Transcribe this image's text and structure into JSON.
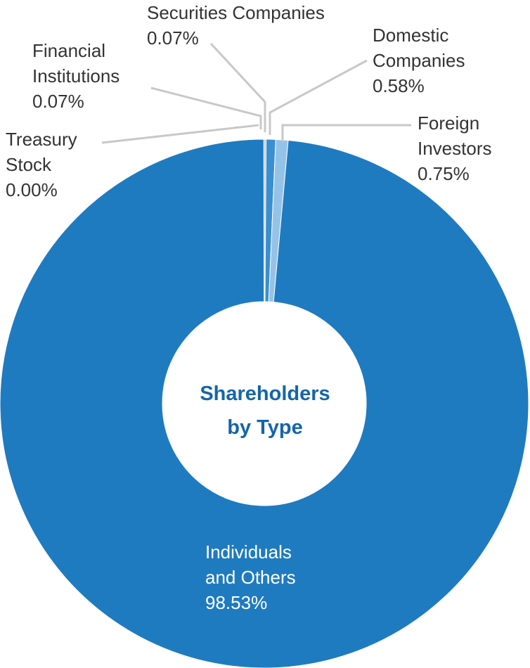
{
  "chart_data": {
    "type": "pie",
    "variant": "donut",
    "title": "Shareholders by Type",
    "title_lines": [
      "Shareholders",
      "by Type"
    ],
    "unit": "%",
    "slices": [
      {
        "name": "Treasury Stock",
        "lines": [
          "Treasury",
          "Stock"
        ],
        "value": 0.0,
        "label": "0.00%",
        "color": "#c8c8c8"
      },
      {
        "name": "Financial Institutions",
        "lines": [
          "Financial",
          "Institutions"
        ],
        "value": 0.07,
        "label": "0.07%",
        "color": "#c8c8c8"
      },
      {
        "name": "Securities Companies",
        "lines": [
          "Securities Companies"
        ],
        "value": 0.07,
        "label": "0.07%",
        "color": "#c8c8c8"
      },
      {
        "name": "Domestic Companies",
        "lines": [
          "Domestic",
          "Companies"
        ],
        "value": 0.58,
        "label": "0.58%",
        "color": "#3a8fd0"
      },
      {
        "name": "Foreign Investors",
        "lines": [
          "Foreign",
          "Investors"
        ],
        "value": 0.75,
        "label": "0.75%",
        "color": "#95c3e8"
      },
      {
        "name": "Individuals and Others",
        "lines": [
          "Individuals",
          "and Others"
        ],
        "value": 98.53,
        "label": "98.53%",
        "color": "#1f7bbf"
      }
    ],
    "leader_color": "#c8c8c8",
    "title_color": "#1565a8"
  }
}
